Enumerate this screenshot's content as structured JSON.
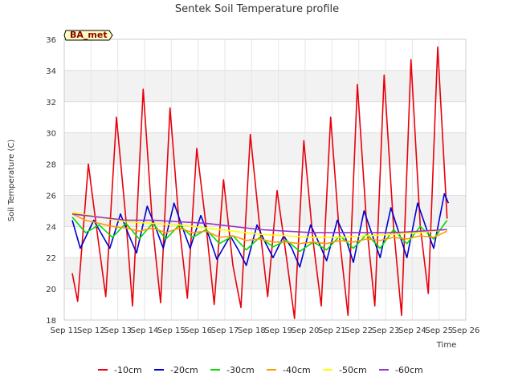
{
  "chart_data": {
    "type": "line",
    "title": "Sentek Soil Temperature profile",
    "xlabel": "Time",
    "ylabel": "Soil Temperature (C)",
    "badge": "BA_met",
    "xlim": [
      11,
      26
    ],
    "ylim": [
      18,
      36
    ],
    "xticks": [
      {
        "value": 11,
        "label": "Sep 11"
      },
      {
        "value": 12,
        "label": "Sep 12"
      },
      {
        "value": 13,
        "label": "Sep 13"
      },
      {
        "value": 14,
        "label": "Sep 14"
      },
      {
        "value": 15,
        "label": "Sep 15"
      },
      {
        "value": 16,
        "label": "Sep 16"
      },
      {
        "value": 17,
        "label": "Sep 17"
      },
      {
        "value": 18,
        "label": "Sep 18"
      },
      {
        "value": 19,
        "label": "Sep 19"
      },
      {
        "value": 20,
        "label": "Sep 20"
      },
      {
        "value": 21,
        "label": "Sep 21"
      },
      {
        "value": 22,
        "label": "Sep 22"
      },
      {
        "value": 23,
        "label": "Sep 23"
      },
      {
        "value": 24,
        "label": "Sep 24"
      },
      {
        "value": 25,
        "label": "Sep 25"
      },
      {
        "value": 26,
        "label": "Sep 26"
      }
    ],
    "yticks": [
      18,
      20,
      22,
      24,
      26,
      28,
      30,
      32,
      34,
      36
    ],
    "grid": true,
    "background_bands": true,
    "legend_position": "bottom",
    "series": [
      {
        "name": "-10cm",
        "color": "#e8000b",
        "points": [
          [
            11.3,
            21.0
          ],
          [
            11.5,
            19.2
          ],
          [
            11.9,
            28.0
          ],
          [
            12.2,
            24.0
          ],
          [
            12.55,
            19.5
          ],
          [
            12.95,
            31.0
          ],
          [
            13.3,
            24.5
          ],
          [
            13.55,
            18.9
          ],
          [
            13.95,
            32.8
          ],
          [
            14.3,
            24.0
          ],
          [
            14.6,
            19.1
          ],
          [
            14.95,
            31.6
          ],
          [
            15.3,
            24.0
          ],
          [
            15.6,
            19.4
          ],
          [
            15.95,
            29.0
          ],
          [
            16.3,
            24.0
          ],
          [
            16.6,
            19.0
          ],
          [
            16.95,
            27.0
          ],
          [
            17.3,
            21.5
          ],
          [
            17.6,
            18.8
          ],
          [
            17.95,
            29.9
          ],
          [
            18.3,
            24.0
          ],
          [
            18.6,
            19.5
          ],
          [
            18.95,
            26.3
          ],
          [
            19.3,
            22.0
          ],
          [
            19.6,
            18.1
          ],
          [
            19.95,
            29.5
          ],
          [
            20.3,
            23.0
          ],
          [
            20.6,
            18.9
          ],
          [
            20.95,
            31.0
          ],
          [
            21.3,
            23.0
          ],
          [
            21.6,
            18.3
          ],
          [
            21.95,
            33.1
          ],
          [
            22.3,
            24.0
          ],
          [
            22.6,
            18.9
          ],
          [
            22.95,
            33.7
          ],
          [
            23.3,
            24.0
          ],
          [
            23.6,
            18.3
          ],
          [
            23.95,
            34.7
          ],
          [
            24.3,
            24.0
          ],
          [
            24.6,
            19.7
          ],
          [
            24.95,
            35.5
          ],
          [
            25.3,
            24.5
          ]
        ]
      },
      {
        "name": "-20cm",
        "color": "#0000cd",
        "points": [
          [
            11.3,
            24.4
          ],
          [
            11.6,
            22.6
          ],
          [
            12.1,
            24.4
          ],
          [
            12.4,
            23.5
          ],
          [
            12.7,
            22.6
          ],
          [
            13.1,
            24.8
          ],
          [
            13.4,
            23.5
          ],
          [
            13.7,
            22.3
          ],
          [
            14.1,
            25.3
          ],
          [
            14.4,
            24.0
          ],
          [
            14.7,
            22.6
          ],
          [
            15.1,
            25.5
          ],
          [
            15.4,
            24.0
          ],
          [
            15.7,
            22.6
          ],
          [
            16.1,
            24.7
          ],
          [
            16.4,
            23.4
          ],
          [
            16.7,
            21.9
          ],
          [
            17.2,
            23.4
          ],
          [
            17.5,
            22.5
          ],
          [
            17.8,
            21.5
          ],
          [
            18.2,
            24.1
          ],
          [
            18.5,
            23.0
          ],
          [
            18.8,
            22.0
          ],
          [
            19.2,
            23.4
          ],
          [
            19.5,
            22.6
          ],
          [
            19.8,
            21.4
          ],
          [
            20.2,
            24.1
          ],
          [
            20.5,
            23.0
          ],
          [
            20.8,
            21.8
          ],
          [
            21.2,
            24.4
          ],
          [
            21.5,
            23.3
          ],
          [
            21.8,
            21.7
          ],
          [
            22.2,
            25.0
          ],
          [
            22.5,
            23.5
          ],
          [
            22.8,
            22.0
          ],
          [
            23.2,
            25.2
          ],
          [
            23.5,
            23.6
          ],
          [
            23.8,
            22.0
          ],
          [
            24.2,
            25.5
          ],
          [
            24.5,
            24.0
          ],
          [
            24.8,
            22.6
          ],
          [
            25.2,
            26.1
          ],
          [
            25.35,
            25.5
          ]
        ]
      },
      {
        "name": "-30cm",
        "color": "#00dd00",
        "points": [
          [
            11.3,
            24.6
          ],
          [
            11.8,
            23.6
          ],
          [
            12.3,
            24.1
          ],
          [
            12.8,
            23.3
          ],
          [
            13.3,
            24.2
          ],
          [
            13.8,
            23.2
          ],
          [
            14.3,
            24.2
          ],
          [
            14.8,
            23.2
          ],
          [
            15.3,
            24.1
          ],
          [
            15.8,
            23.3
          ],
          [
            16.3,
            23.8
          ],
          [
            16.8,
            22.9
          ],
          [
            17.3,
            23.4
          ],
          [
            17.8,
            22.5
          ],
          [
            18.3,
            23.3
          ],
          [
            18.8,
            22.7
          ],
          [
            19.3,
            23.1
          ],
          [
            19.8,
            22.4
          ],
          [
            20.3,
            23.0
          ],
          [
            20.8,
            22.5
          ],
          [
            21.3,
            23.4
          ],
          [
            21.8,
            22.6
          ],
          [
            22.3,
            23.5
          ],
          [
            22.8,
            22.6
          ],
          [
            23.3,
            23.8
          ],
          [
            23.8,
            22.9
          ],
          [
            24.3,
            24.0
          ],
          [
            24.8,
            23.2
          ],
          [
            25.3,
            24.4
          ]
        ]
      },
      {
        "name": "-40cm",
        "color": "#ff9900",
        "points": [
          [
            11.3,
            24.8
          ],
          [
            11.8,
            24.4
          ],
          [
            12.3,
            24.2
          ],
          [
            12.8,
            24.0
          ],
          [
            13.3,
            23.9
          ],
          [
            13.8,
            23.7
          ],
          [
            14.3,
            23.9
          ],
          [
            14.8,
            23.6
          ],
          [
            15.3,
            23.9
          ],
          [
            15.8,
            23.6
          ],
          [
            16.3,
            23.7
          ],
          [
            16.8,
            23.3
          ],
          [
            17.3,
            23.4
          ],
          [
            17.8,
            23.1
          ],
          [
            18.3,
            23.2
          ],
          [
            18.8,
            23.0
          ],
          [
            19.3,
            23.0
          ],
          [
            19.8,
            22.9
          ],
          [
            20.3,
            23.0
          ],
          [
            20.8,
            22.9
          ],
          [
            21.3,
            23.1
          ],
          [
            21.8,
            23.0
          ],
          [
            22.3,
            23.2
          ],
          [
            22.8,
            23.1
          ],
          [
            23.3,
            23.3
          ],
          [
            23.8,
            23.2
          ],
          [
            24.3,
            23.4
          ],
          [
            24.8,
            23.3
          ],
          [
            25.3,
            23.7
          ]
        ]
      },
      {
        "name": "-50cm",
        "color": "#ffff00",
        "points": [
          [
            11.3,
            24.9
          ],
          [
            12.3,
            24.6
          ],
          [
            13.3,
            24.3
          ],
          [
            14.3,
            24.2
          ],
          [
            15.3,
            24.1
          ],
          [
            16.3,
            23.9
          ],
          [
            17.3,
            23.7
          ],
          [
            18.3,
            23.5
          ],
          [
            19.3,
            23.4
          ],
          [
            20.3,
            23.3
          ],
          [
            21.3,
            23.3
          ],
          [
            22.3,
            23.4
          ],
          [
            23.3,
            23.5
          ],
          [
            24.3,
            23.6
          ],
          [
            25.3,
            23.8
          ]
        ]
      },
      {
        "name": "-60cm",
        "color": "#9932cc",
        "points": [
          [
            11.3,
            24.8
          ],
          [
            12.3,
            24.6
          ],
          [
            13.3,
            24.4
          ],
          [
            14.3,
            24.4
          ],
          [
            15.3,
            24.3
          ],
          [
            16.3,
            24.2
          ],
          [
            17.3,
            24.0
          ],
          [
            18.3,
            23.8
          ],
          [
            19.3,
            23.7
          ],
          [
            20.3,
            23.6
          ],
          [
            21.3,
            23.6
          ],
          [
            22.3,
            23.6
          ],
          [
            23.3,
            23.6
          ],
          [
            24.3,
            23.7
          ],
          [
            25.3,
            23.8
          ]
        ]
      }
    ]
  }
}
